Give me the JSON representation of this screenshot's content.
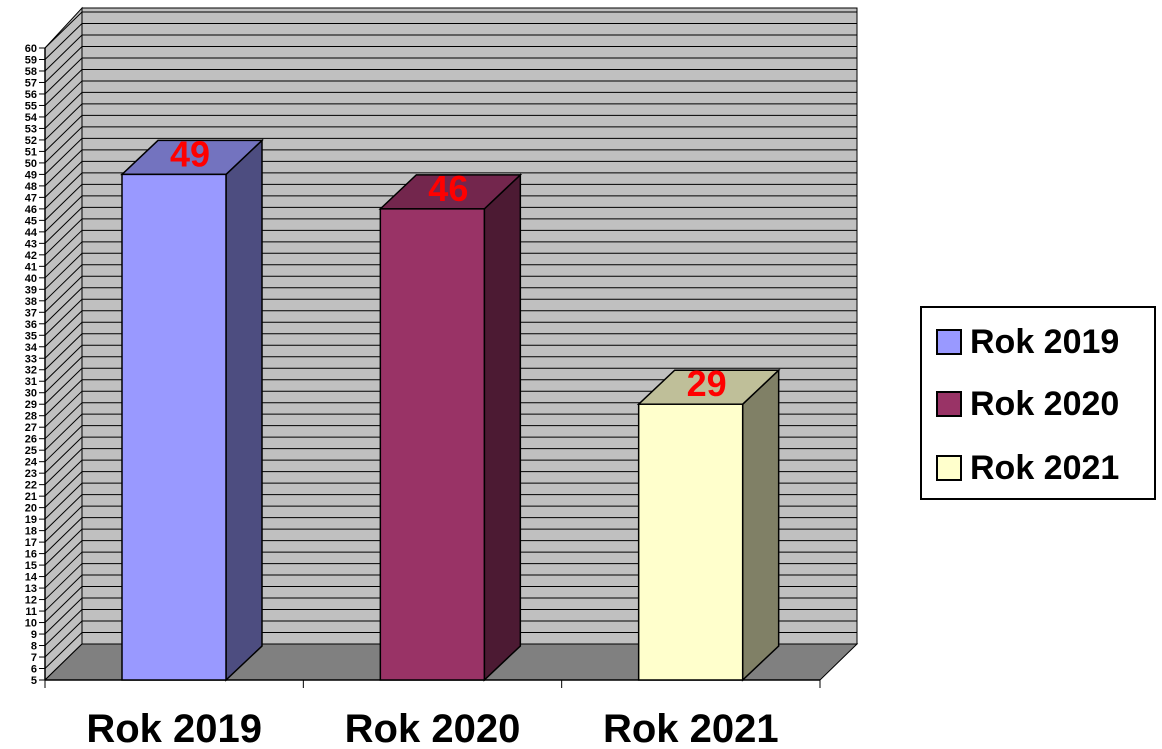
{
  "chart_data": {
    "type": "bar",
    "categories": [
      "Rok 2019",
      "Rok 2020",
      "Rok 2021"
    ],
    "series": [
      {
        "name": "Rok 2019",
        "values": [
          49,
          null,
          null
        ]
      },
      {
        "name": "Rok 2020",
        "values": [
          null,
          46,
          null
        ]
      },
      {
        "name": "Rok 2021",
        "values": [
          null,
          null,
          29
        ]
      }
    ],
    "values": [
      49,
      46,
      29
    ],
    "data_labels": [
      "49",
      "46",
      "29"
    ],
    "yticks": [
      5,
      6,
      7,
      8,
      9,
      10,
      11,
      12,
      13,
      14,
      15,
      16,
      17,
      18,
      19,
      20,
      21,
      22,
      23,
      24,
      25,
      26,
      27,
      28,
      29,
      30,
      31,
      32,
      33,
      34,
      35,
      36,
      37,
      38,
      39,
      40,
      41,
      42,
      43,
      44,
      45,
      46,
      47,
      48,
      49,
      50,
      51,
      52,
      53,
      54,
      55,
      56,
      57,
      58,
      59,
      60
    ],
    "ylim": [
      5,
      60
    ],
    "grid": true,
    "legend_position": "right",
    "colors": {
      "Rok 2019": {
        "front": "#9999ff",
        "side": "#4d4d80",
        "top": "#7373bf"
      },
      "Rok 2020": {
        "front": "#993366",
        "side": "#4c1a33",
        "top": "#73264d"
      },
      "Rok 2021": {
        "front": "#ffffcc",
        "side": "#808066",
        "top": "#bfbf99"
      }
    },
    "wall_color": "#c0c0c0",
    "floor_color": "#808080",
    "label_color": "#ff0000"
  },
  "legend": {
    "items": [
      {
        "label": "Rok 2019",
        "color": "#9999ff"
      },
      {
        "label": "Rok 2020",
        "color": "#993366"
      },
      {
        "label": "Rok 2021",
        "color": "#ffffcc"
      }
    ]
  }
}
